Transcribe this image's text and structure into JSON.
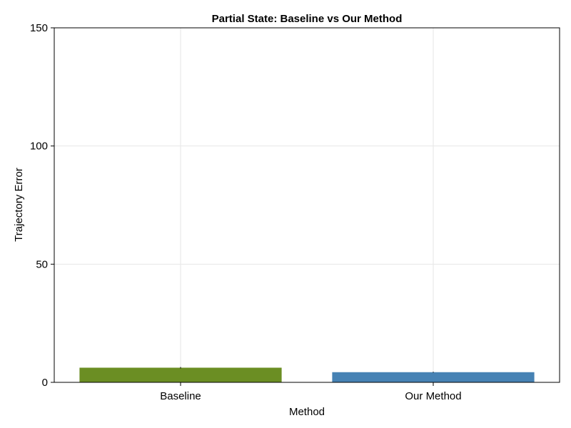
{
  "chart_data": {
    "type": "bar",
    "title": "Partial State: Baseline vs Our Method",
    "xlabel": "Method",
    "ylabel": "Trajectory Error",
    "categories": [
      "Baseline",
      "Our Method"
    ],
    "values": [
      6.2,
      4.3
    ],
    "errors": [
      0.3,
      0.2
    ],
    "colors": [
      "#6b8e23",
      "#4682b4"
    ],
    "ylim": [
      0,
      150
    ],
    "yticks": [
      0,
      50,
      100,
      150
    ],
    "grid": true,
    "legend": "none"
  }
}
